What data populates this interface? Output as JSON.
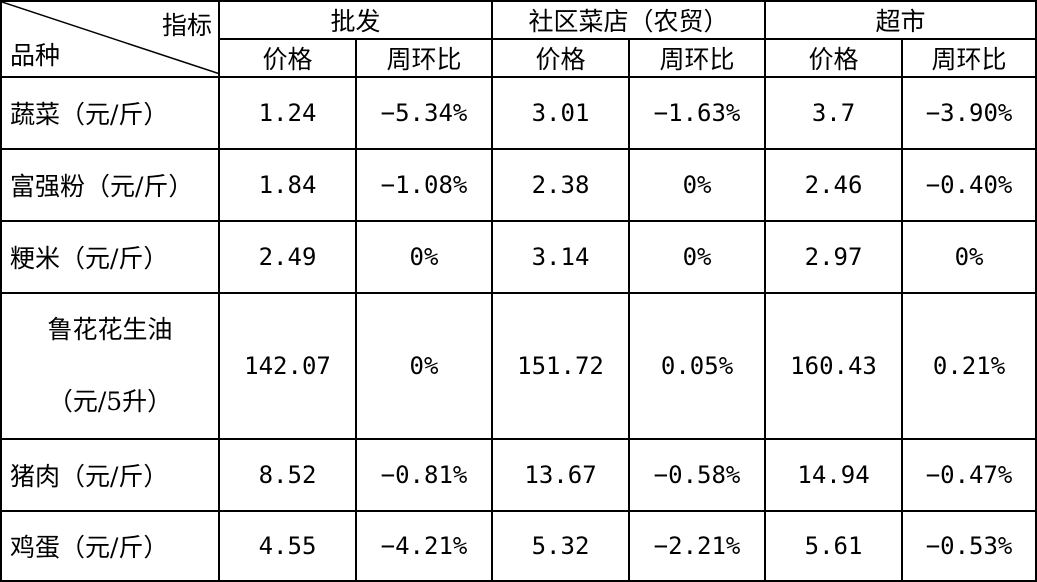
{
  "header": {
    "corner_top": "指标",
    "corner_bottom": "品种",
    "groups": [
      "批发",
      "社区菜店（农贸）",
      "超市"
    ],
    "sub": [
      "价格",
      "周环比",
      "价格",
      "周环比",
      "价格",
      "周环比"
    ]
  },
  "rows": [
    {
      "name": "蔬菜（元/斤）",
      "cells": [
        "1.24",
        "−5.34%",
        "3.01",
        "−1.63%",
        "3.7",
        "−3.90%"
      ]
    },
    {
      "name": "富强粉（元/斤）",
      "cells": [
        "1.84",
        "−1.08%",
        "2.38",
        "0%",
        "2.46",
        "−0.40%"
      ]
    },
    {
      "name": "粳米（元/斤）",
      "cells": [
        "2.49",
        "0%",
        "3.14",
        "0%",
        "2.97",
        "0%"
      ]
    },
    {
      "name_line1": "鲁花花生油",
      "name_line2": "（元/5升）",
      "cells": [
        "142.07",
        "0%",
        "151.72",
        "0.05%",
        "160.43",
        "0.21%"
      ]
    },
    {
      "name": "猪肉（元/斤）",
      "cells": [
        "8.52",
        "−0.81%",
        "13.67",
        "−0.58%",
        "14.94",
        "−0.47%"
      ]
    },
    {
      "name": "鸡蛋（元/斤）",
      "cells": [
        "4.55",
        "−4.21%",
        "5.32",
        "−2.21%",
        "5.61",
        "−0.53%"
      ]
    }
  ]
}
